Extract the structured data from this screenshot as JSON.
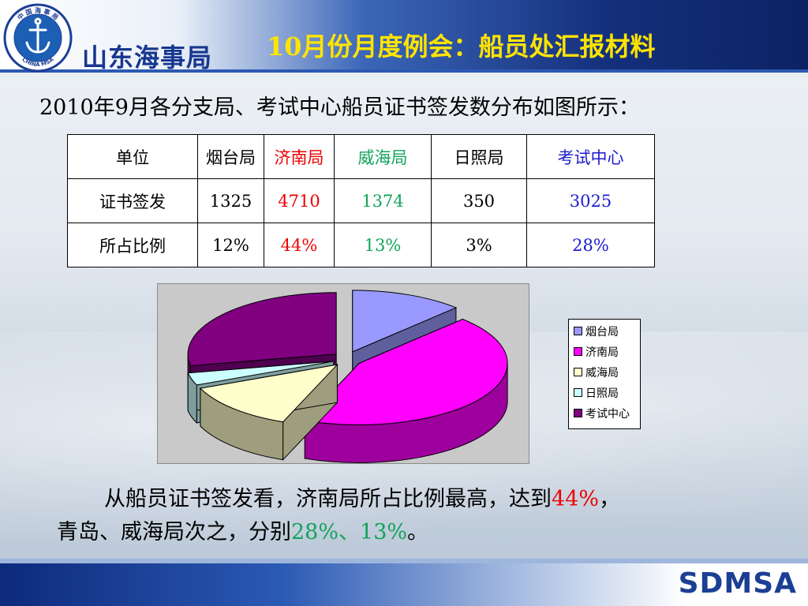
{
  "header": {
    "logo": {
      "ring_text_top": "中 国 海 事 局",
      "ring_text_bottom": "CHINA MSA"
    },
    "org_name": "山东海事局",
    "title": "10月份月度例会：船员处汇报材料"
  },
  "intro": "2010年9月各分支局、考试中心船员证书签发数分布如图所示：",
  "table": {
    "header": [
      "单位",
      "烟台局",
      "济南局",
      "威海局",
      "日照局",
      "考试中心"
    ],
    "rows": [
      {
        "label": "证书签发",
        "values": [
          "1325",
          "4710",
          "1374",
          "350",
          "3025"
        ]
      },
      {
        "label": "所占比例",
        "values": [
          "12%",
          "44%",
          "13%",
          "3%",
          "28%"
        ]
      }
    ],
    "column_colors": [
      "#000000",
      "#000000",
      "#ee0000",
      "#12a35a",
      "#000000",
      "#1c1ccc"
    ]
  },
  "chart_data": {
    "type": "pie",
    "categories": [
      "烟台局",
      "济南局",
      "威海局",
      "日照局",
      "考试中心"
    ],
    "values": [
      1325,
      4710,
      1374,
      350,
      3025
    ],
    "colors": [
      "#9999ff",
      "#ff00ff",
      "#ffffcc",
      "#ccffff",
      "#800080"
    ],
    "style": "3d-exploded",
    "legend": "right"
  },
  "conclusion": {
    "line1_text": "从船员证书签发看，济南局所占比例最高，达到",
    "line1_highlight": "44%",
    "line1_end": "，",
    "line2_text": "青岛、威海局次之，分别",
    "line2_highlight": "28%、13%",
    "line2_end": "。",
    "highlight1_color": "#ee0000",
    "highlight2_color": "#12a35a"
  },
  "footer": {
    "brand": "SDMSA"
  }
}
